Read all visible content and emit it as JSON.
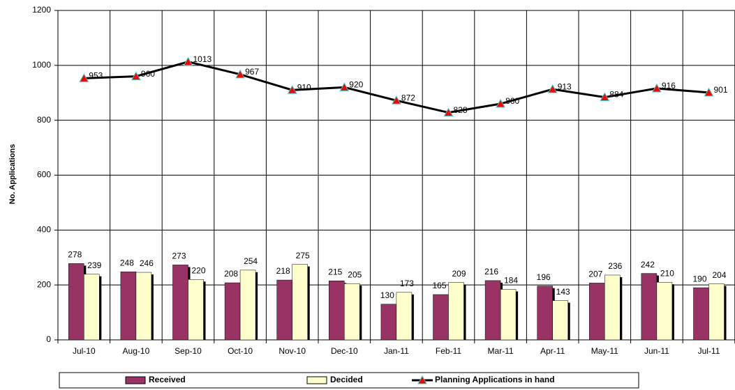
{
  "chart_data": {
    "type": "bar_line",
    "y_label": "No. Applications",
    "categories": [
      "Jul-10",
      "Aug-10",
      "Sep-10",
      "Oct-10",
      "Nov-10",
      "Dec-10",
      "Jan-11",
      "Feb-11",
      "Mar-11",
      "Apr-11",
      "May-11",
      "Jun-11",
      "Jul-11"
    ],
    "series": [
      {
        "name": "Received",
        "type": "bar",
        "color": "#993366",
        "values": [
          278,
          248,
          273,
          208,
          218,
          215,
          130,
          165,
          216,
          196,
          207,
          242,
          190
        ]
      },
      {
        "name": "Decided",
        "type": "bar",
        "color": "#ffffcc",
        "values": [
          239,
          246,
          220,
          254,
          275,
          205,
          173,
          209,
          184,
          143,
          236,
          210,
          204
        ]
      },
      {
        "name": "Planning Applications in hand",
        "type": "line",
        "color": "#000000",
        "marker_color": "#ff0000",
        "values": [
          953,
          960,
          1013,
          967,
          910,
          920,
          872,
          828,
          860,
          913,
          884,
          916,
          901
        ]
      }
    ],
    "ylim": [
      0,
      1200
    ],
    "yticks": [
      0,
      200,
      400,
      600,
      800,
      1000,
      1200
    ],
    "grid": true
  }
}
